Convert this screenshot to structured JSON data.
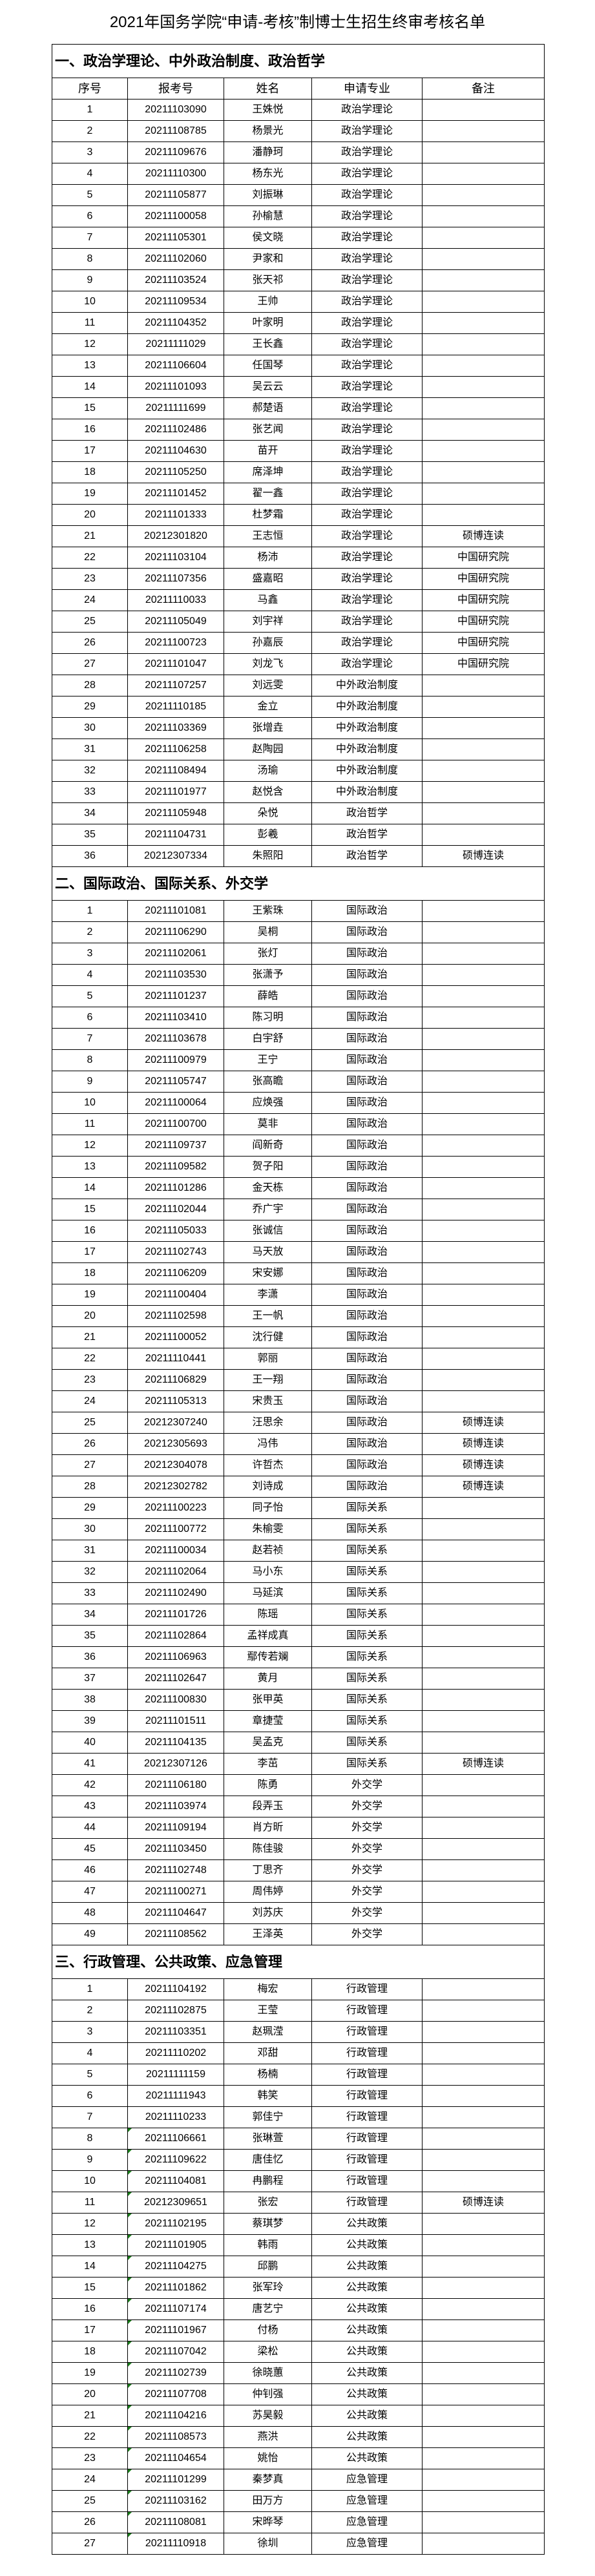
{
  "title": "2021年国务学院“申请-考核”制博士生招生终审考核名单",
  "columns": [
    "序号",
    "报考号",
    "姓名",
    "申请专业",
    "备注"
  ],
  "sections": [
    {
      "heading": "一、政治学理论、中外政治制度、政治哲学",
      "show_columns": true,
      "rows": [
        [
          "1",
          "20211103090",
          "王姝悦",
          "政治学理论",
          ""
        ],
        [
          "2",
          "20211108785",
          "杨景光",
          "政治学理论",
          ""
        ],
        [
          "3",
          "20211109676",
          "潘静珂",
          "政治学理论",
          ""
        ],
        [
          "4",
          "20211110300",
          "杨东光",
          "政治学理论",
          ""
        ],
        [
          "5",
          "20211105877",
          "刘振琳",
          "政治学理论",
          ""
        ],
        [
          "6",
          "20211100058",
          "孙榆慧",
          "政治学理论",
          ""
        ],
        [
          "7",
          "20211105301",
          "侯文晓",
          "政治学理论",
          ""
        ],
        [
          "8",
          "20211102060",
          "尹家和",
          "政治学理论",
          ""
        ],
        [
          "9",
          "20211103524",
          "张天祁",
          "政治学理论",
          ""
        ],
        [
          "10",
          "20211109534",
          "王帅",
          "政治学理论",
          ""
        ],
        [
          "11",
          "20211104352",
          "叶家明",
          "政治学理论",
          ""
        ],
        [
          "12",
          "20211111029",
          "王长鑫",
          "政治学理论",
          ""
        ],
        [
          "13",
          "20211106604",
          "任国琴",
          "政治学理论",
          ""
        ],
        [
          "14",
          "20211101093",
          "吴云云",
          "政治学理论",
          ""
        ],
        [
          "15",
          "20211111699",
          "郝楚语",
          "政治学理论",
          ""
        ],
        [
          "16",
          "20211102486",
          "张艺闻",
          "政治学理论",
          ""
        ],
        [
          "17",
          "20211104630",
          "苗开",
          "政治学理论",
          ""
        ],
        [
          "18",
          "20211105250",
          "席泽坤",
          "政治学理论",
          ""
        ],
        [
          "19",
          "20211101452",
          "翟一鑫",
          "政治学理论",
          ""
        ],
        [
          "20",
          "20211101333",
          "杜梦霜",
          "政治学理论",
          ""
        ],
        [
          "21",
          "20212301820",
          "王志恒",
          "政治学理论",
          "硕博连读"
        ],
        [
          "22",
          "20211103104",
          "杨沛",
          "政治学理论",
          "中国研究院"
        ],
        [
          "23",
          "20211107356",
          "盛嘉昭",
          "政治学理论",
          "中国研究院"
        ],
        [
          "24",
          "20211110033",
          "马鑫",
          "政治学理论",
          "中国研究院"
        ],
        [
          "25",
          "20211105049",
          "刘宇祥",
          "政治学理论",
          "中国研究院"
        ],
        [
          "26",
          "20211100723",
          "孙嘉辰",
          "政治学理论",
          "中国研究院"
        ],
        [
          "27",
          "20211101047",
          "刘龙飞",
          "政治学理论",
          "中国研究院"
        ],
        [
          "28",
          "20211107257",
          "刘远雯",
          "中外政治制度",
          ""
        ],
        [
          "29",
          "20211110185",
          "金立",
          "中外政治制度",
          ""
        ],
        [
          "30",
          "20211103369",
          "张增垚",
          "中外政治制度",
          ""
        ],
        [
          "31",
          "20211106258",
          "赵陶园",
          "中外政治制度",
          ""
        ],
        [
          "32",
          "20211108494",
          "汤瑜",
          "中外政治制度",
          ""
        ],
        [
          "33",
          "20211101977",
          "赵悦含",
          "中外政治制度",
          ""
        ],
        [
          "34",
          "20211105948",
          "朵悦",
          "政治哲学",
          ""
        ],
        [
          "35",
          "20211104731",
          "彭羲",
          "政治哲学",
          ""
        ],
        [
          "36",
          "20212307334",
          "朱照阳",
          "政治哲学",
          "硕博连读"
        ]
      ]
    },
    {
      "heading": "二、国际政治、国际关系、外交学",
      "show_columns": false,
      "rows": [
        [
          "1",
          "20211101081",
          "王紫珠",
          "国际政治",
          ""
        ],
        [
          "2",
          "20211106290",
          "吴桐",
          "国际政治",
          ""
        ],
        [
          "3",
          "20211102061",
          "张灯",
          "国际政治",
          ""
        ],
        [
          "4",
          "20211103530",
          "张潇予",
          "国际政治",
          ""
        ],
        [
          "5",
          "20211101237",
          "薛皓",
          "国际政治",
          ""
        ],
        [
          "6",
          "20211103410",
          "陈习明",
          "国际政治",
          ""
        ],
        [
          "7",
          "20211103678",
          "白宇舒",
          "国际政治",
          ""
        ],
        [
          "8",
          "20211100979",
          "王宁",
          "国际政治",
          ""
        ],
        [
          "9",
          "20211105747",
          "张高瞻",
          "国际政治",
          ""
        ],
        [
          "10",
          "20211100064",
          "应焕强",
          "国际政治",
          ""
        ],
        [
          "11",
          "20211100700",
          "莫非",
          "国际政治",
          ""
        ],
        [
          "12",
          "20211109737",
          "阎新奇",
          "国际政治",
          ""
        ],
        [
          "13",
          "20211109582",
          "贺子阳",
          "国际政治",
          ""
        ],
        [
          "14",
          "20211101286",
          "金天栋",
          "国际政治",
          ""
        ],
        [
          "15",
          "20211102044",
          "乔广宇",
          "国际政治",
          ""
        ],
        [
          "16",
          "20211105033",
          "张诚信",
          "国际政治",
          ""
        ],
        [
          "17",
          "20211102743",
          "马天放",
          "国际政治",
          ""
        ],
        [
          "18",
          "20211106209",
          "宋安娜",
          "国际政治",
          ""
        ],
        [
          "19",
          "20211100404",
          "李潇",
          "国际政治",
          ""
        ],
        [
          "20",
          "20211102598",
          "王一帆",
          "国际政治",
          ""
        ],
        [
          "21",
          "20211100052",
          "沈行健",
          "国际政治",
          ""
        ],
        [
          "22",
          "20211110441",
          "郭丽",
          "国际政治",
          ""
        ],
        [
          "23",
          "20211106829",
          "王一翔",
          "国际政治",
          ""
        ],
        [
          "24",
          "20211105313",
          "宋贵玉",
          "国际政治",
          ""
        ],
        [
          "25",
          "20212307240",
          "汪思余",
          "国际政治",
          "硕博连读"
        ],
        [
          "26",
          "20212305693",
          "冯伟",
          "国际政治",
          "硕博连读"
        ],
        [
          "27",
          "20212304078",
          "许哲杰",
          "国际政治",
          "硕博连读"
        ],
        [
          "28",
          "20212302782",
          "刘诗成",
          "国际政治",
          "硕博连读"
        ],
        [
          "29",
          "20211100223",
          "同子怡",
          "国际关系",
          ""
        ],
        [
          "30",
          "20211100772",
          "朱榆雯",
          "国际关系",
          ""
        ],
        [
          "31",
          "20211100034",
          "赵若祯",
          "国际关系",
          ""
        ],
        [
          "32",
          "20211102064",
          "马小东",
          "国际关系",
          ""
        ],
        [
          "33",
          "20211102490",
          "马延滨",
          "国际关系",
          ""
        ],
        [
          "34",
          "20211101726",
          "陈瑶",
          "国际关系",
          ""
        ],
        [
          "35",
          "20211102864",
          "孟祥成真",
          "国际关系",
          ""
        ],
        [
          "36",
          "20211106963",
          "鄢传若斓",
          "国际关系",
          ""
        ],
        [
          "37",
          "20211102647",
          "黄月",
          "国际关系",
          ""
        ],
        [
          "38",
          "20211100830",
          "张甲英",
          "国际关系",
          ""
        ],
        [
          "39",
          "20211101511",
          "章捷莹",
          "国际关系",
          ""
        ],
        [
          "40",
          "20211104135",
          "吴孟克",
          "国际关系",
          ""
        ],
        [
          "41",
          "20212307126",
          "李茁",
          "国际关系",
          "硕博连读"
        ],
        [
          "42",
          "20211106180",
          "陈勇",
          "外交学",
          ""
        ],
        [
          "43",
          "20211103974",
          "段弄玉",
          "外交学",
          ""
        ],
        [
          "44",
          "20211109194",
          "肖方昕",
          "外交学",
          ""
        ],
        [
          "45",
          "20211103450",
          "陈佳骏",
          "外交学",
          ""
        ],
        [
          "46",
          "20211102748",
          "丁思齐",
          "外交学",
          ""
        ],
        [
          "47",
          "20211100271",
          "周伟婷",
          "外交学",
          ""
        ],
        [
          "48",
          "20211104647",
          "刘苏庆",
          "外交学",
          ""
        ],
        [
          "49",
          "20211108562",
          "王泽英",
          "外交学",
          ""
        ]
      ]
    },
    {
      "heading": "三、行政管理、公共政策、应急管理",
      "show_columns": false,
      "rows": [
        [
          "1",
          "20211104192",
          "梅宏",
          "行政管理",
          ""
        ],
        [
          "2",
          "20211102875",
          "王莹",
          "行政管理",
          ""
        ],
        [
          "3",
          "20211103351",
          "赵珮滢",
          "行政管理",
          ""
        ],
        [
          "4",
          "20211110202",
          "邓甜",
          "行政管理",
          ""
        ],
        [
          "5",
          "20211111159",
          "杨楠",
          "行政管理",
          ""
        ],
        [
          "6",
          "20211111943",
          "韩笑",
          "行政管理",
          ""
        ],
        [
          "7",
          "20211110233",
          "郭佳宁",
          "行政管理",
          ""
        ],
        [
          "8",
          "20211106661",
          "张琳萱",
          "行政管理",
          ""
        ],
        [
          "9",
          "20211109622",
          "唐佳忆",
          "行政管理",
          ""
        ],
        [
          "10",
          "20211104081",
          "冉鹏程",
          "行政管理",
          ""
        ],
        [
          "11",
          "20212309651",
          "张宏",
          "行政管理",
          "硕博连读"
        ],
        [
          "12",
          "20211102195",
          "蔡琪梦",
          "公共政策",
          ""
        ],
        [
          "13",
          "20211101905",
          "韩雨",
          "公共政策",
          ""
        ],
        [
          "14",
          "20211104275",
          "邱鹏",
          "公共政策",
          ""
        ],
        [
          "15",
          "20211101862",
          "张军玲",
          "公共政策",
          ""
        ],
        [
          "16",
          "20211107174",
          "唐艺宁",
          "公共政策",
          ""
        ],
        [
          "17",
          "20211101967",
          "付杨",
          "公共政策",
          ""
        ],
        [
          "18",
          "20211107042",
          "梁松",
          "公共政策",
          ""
        ],
        [
          "19",
          "20211102739",
          "徐晓蕙",
          "公共政策",
          ""
        ],
        [
          "20",
          "20211107708",
          "仲钊强",
          "公共政策",
          ""
        ],
        [
          "21",
          "20211104216",
          "苏昊毅",
          "公共政策",
          ""
        ],
        [
          "22",
          "20211108573",
          "燕洪",
          "公共政策",
          ""
        ],
        [
          "23",
          "20211104654",
          "姚怡",
          "公共政策",
          ""
        ],
        [
          "24",
          "20211101299",
          "秦梦真",
          "应急管理",
          ""
        ],
        [
          "25",
          "20211103162",
          "田万方",
          "应急管理",
          ""
        ],
        [
          "26",
          "20211108081",
          "宋晔琴",
          "应急管理",
          ""
        ],
        [
          "27",
          "20211110918",
          "徐圳",
          "应急管理",
          ""
        ]
      ]
    }
  ],
  "colors": {
    "text": "#000000",
    "border": "#000000",
    "text_cell_marker": "#1a7f1a"
  }
}
